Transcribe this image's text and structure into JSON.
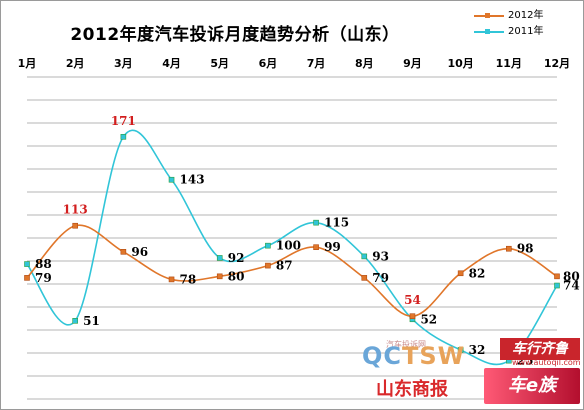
{
  "chart_data": {
    "type": "line",
    "title": "2012年度汽车投诉月度趋势分析（山东）",
    "categories": [
      "1月",
      "2月",
      "3月",
      "4月",
      "5月",
      "6月",
      "7月",
      "8月",
      "9月",
      "10月",
      "11月",
      "12月"
    ],
    "series": [
      {
        "name": "2012年",
        "color": "#e0762a",
        "marker": "square",
        "values": [
          79,
          113,
          96,
          78,
          80,
          87,
          99,
          79,
          54,
          82,
          98,
          80
        ]
      },
      {
        "name": "2011年",
        "color": "#31c5d8",
        "marker": "square",
        "values": [
          88,
          51,
          171,
          143,
          92,
          100,
          115,
          93,
          52,
          32,
          25,
          74
        ]
      }
    ],
    "highlight_labels": {
      "color": "#d21e1e",
      "2012年": [
        1,
        8
      ],
      "2011年": [
        2
      ]
    },
    "ylim": [
      0,
      210
    ],
    "grid": true,
    "legend_position": "top-right"
  },
  "watermarks": {
    "qctsw_part1": "QC",
    "qctsw_part2": "TSW",
    "qctsw_small": "汽车投诉网",
    "shandong": "山东商报",
    "brand": "车行齐鲁",
    "brand_url": "www.autoqil.com",
    "che": "车e族"
  }
}
